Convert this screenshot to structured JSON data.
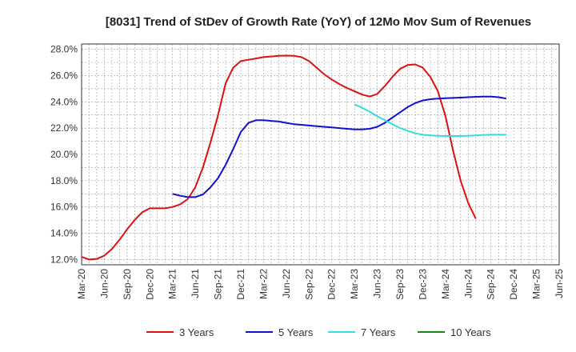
{
  "chart_data": {
    "type": "line",
    "title": "[8031]  Trend of StDev of Growth Rate (YoY) of 12Mo Mov Sum of Revenues",
    "xlabel": "",
    "ylabel": "",
    "x_ticks": [
      "Mar-20",
      "Jun-20",
      "Sep-20",
      "Dec-20",
      "Mar-21",
      "Jun-21",
      "Sep-21",
      "Dec-21",
      "Mar-22",
      "Jun-22",
      "Sep-22",
      "Dec-22",
      "Mar-23",
      "Jun-23",
      "Sep-23",
      "Dec-23",
      "Mar-24",
      "Jun-24",
      "Sep-24",
      "Dec-24",
      "Mar-25",
      "Jun-25"
    ],
    "y_ticks": [
      "12.0%",
      "14.0%",
      "16.0%",
      "18.0%",
      "20.0%",
      "22.0%",
      "24.0%",
      "26.0%",
      "28.0%"
    ],
    "ylim": [
      11.6,
      28.4
    ],
    "grid": true,
    "legend_position": "bottom",
    "series": [
      {
        "name": "3 Years",
        "color": "#dd1111",
        "points": [
          [
            0,
            12.2
          ],
          [
            1,
            12.0
          ],
          [
            2,
            12.05
          ],
          [
            3,
            12.3
          ],
          [
            4,
            12.8
          ],
          [
            5,
            13.5
          ],
          [
            6,
            14.3
          ],
          [
            7,
            15.0
          ],
          [
            8,
            15.6
          ],
          [
            9,
            15.9
          ],
          [
            10,
            15.9
          ],
          [
            11,
            15.9
          ],
          [
            12,
            16.0
          ],
          [
            13,
            16.2
          ],
          [
            14,
            16.6
          ],
          [
            15,
            17.5
          ],
          [
            16,
            19.0
          ],
          [
            17,
            20.9
          ],
          [
            18,
            23.0
          ],
          [
            19,
            25.4
          ],
          [
            20,
            26.6
          ],
          [
            21,
            27.1
          ],
          [
            22,
            27.2
          ],
          [
            23,
            27.3
          ],
          [
            24,
            27.4
          ],
          [
            25,
            27.45
          ],
          [
            26,
            27.5
          ],
          [
            27,
            27.52
          ],
          [
            28,
            27.5
          ],
          [
            29,
            27.4
          ],
          [
            30,
            27.1
          ],
          [
            31,
            26.6
          ],
          [
            32,
            26.1
          ],
          [
            33,
            25.7
          ],
          [
            34,
            25.35
          ],
          [
            35,
            25.05
          ],
          [
            36,
            24.8
          ],
          [
            37,
            24.55
          ],
          [
            38,
            24.4
          ],
          [
            39,
            24.6
          ],
          [
            40,
            25.2
          ],
          [
            41,
            25.9
          ],
          [
            42,
            26.5
          ],
          [
            43,
            26.8
          ],
          [
            44,
            26.85
          ],
          [
            45,
            26.6
          ],
          [
            46,
            25.9
          ],
          [
            47,
            24.8
          ],
          [
            48,
            22.9
          ],
          [
            49,
            20.3
          ],
          [
            50,
            18.0
          ],
          [
            51,
            16.3
          ],
          [
            52,
            15.1
          ]
        ]
      },
      {
        "name": "5 Years",
        "color": "#1111cc",
        "points": [
          [
            12,
            17.0
          ],
          [
            13,
            16.85
          ],
          [
            14,
            16.75
          ],
          [
            15,
            16.75
          ],
          [
            16,
            16.95
          ],
          [
            17,
            17.5
          ],
          [
            18,
            18.2
          ],
          [
            19,
            19.2
          ],
          [
            20,
            20.4
          ],
          [
            21,
            21.7
          ],
          [
            22,
            22.4
          ],
          [
            23,
            22.6
          ],
          [
            24,
            22.6
          ],
          [
            25,
            22.55
          ],
          [
            26,
            22.5
          ],
          [
            27,
            22.4
          ],
          [
            28,
            22.3
          ],
          [
            29,
            22.25
          ],
          [
            30,
            22.2
          ],
          [
            31,
            22.15
          ],
          [
            32,
            22.1
          ],
          [
            33,
            22.05
          ],
          [
            34,
            22.0
          ],
          [
            35,
            21.95
          ],
          [
            36,
            21.9
          ],
          [
            37,
            21.9
          ],
          [
            38,
            21.95
          ],
          [
            39,
            22.1
          ],
          [
            40,
            22.4
          ],
          [
            41,
            22.8
          ],
          [
            42,
            23.2
          ],
          [
            43,
            23.6
          ],
          [
            44,
            23.9
          ],
          [
            45,
            24.1
          ],
          [
            46,
            24.2
          ],
          [
            47,
            24.25
          ],
          [
            48,
            24.28
          ],
          [
            49,
            24.3
          ],
          [
            50,
            24.32
          ],
          [
            51,
            24.35
          ],
          [
            52,
            24.38
          ],
          [
            53,
            24.4
          ],
          [
            54,
            24.4
          ],
          [
            55,
            24.35
          ],
          [
            56,
            24.25
          ]
        ]
      },
      {
        "name": "7 Years",
        "color": "#33dddd",
        "points": [
          [
            36,
            23.8
          ],
          [
            37,
            23.55
          ],
          [
            38,
            23.25
          ],
          [
            39,
            22.9
          ],
          [
            40,
            22.6
          ],
          [
            41,
            22.3
          ],
          [
            42,
            22.0
          ],
          [
            43,
            21.8
          ],
          [
            44,
            21.6
          ],
          [
            45,
            21.5
          ],
          [
            46,
            21.45
          ],
          [
            47,
            21.42
          ],
          [
            48,
            21.4
          ],
          [
            49,
            21.4
          ],
          [
            50,
            21.4
          ],
          [
            51,
            21.42
          ],
          [
            52,
            21.45
          ],
          [
            53,
            21.47
          ],
          [
            54,
            21.5
          ],
          [
            55,
            21.5
          ],
          [
            56,
            21.5
          ]
        ]
      },
      {
        "name": "10 Years",
        "color": "#118811",
        "points": []
      }
    ]
  }
}
